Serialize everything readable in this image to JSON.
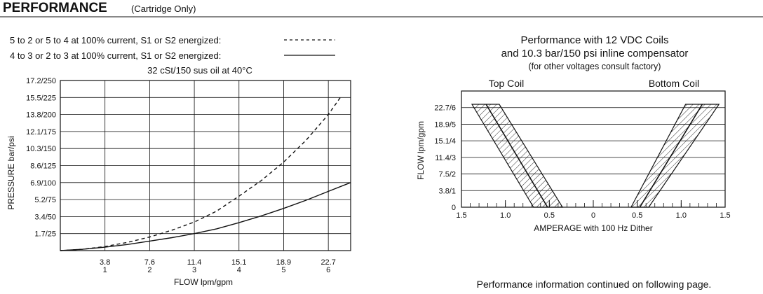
{
  "header": {
    "title": "PERFORMANCE",
    "subtitle": "(Cartridge Only)"
  },
  "footer": {
    "note": "Performance information continued on following page."
  },
  "chart_data": [
    {
      "type": "line",
      "legend": [
        {
          "label": "5 to 2 or 5 to 4 at 100% current, S1 or S2 energized:",
          "style": "dashed"
        },
        {
          "label": "4 to 3 or 2 to 3 at 100% current, S1 or S2 energized:",
          "style": "solid"
        }
      ],
      "title": "32 cSt/150 sus oil at 40°C",
      "xlabel": "FLOW lpm/gpm",
      "ylabel": "PRESSURE bar/psi",
      "x_unit": "gpm",
      "y_unit": "psi",
      "xlim": [
        0,
        6.5
      ],
      "ylim": [
        0,
        250
      ],
      "x_ticks": [
        {
          "value": 1,
          "top": "3.8",
          "bottom": "1"
        },
        {
          "value": 2,
          "top": "7.6",
          "bottom": "2"
        },
        {
          "value": 3,
          "top": "11.4",
          "bottom": "3"
        },
        {
          "value": 4,
          "top": "15.1",
          "bottom": "4"
        },
        {
          "value": 5,
          "top": "18.9",
          "bottom": "5"
        },
        {
          "value": 6,
          "top": "22.7",
          "bottom": "6"
        }
      ],
      "y_ticks": [
        {
          "value": 25,
          "label": "1.7/25"
        },
        {
          "value": 50,
          "label": "3.4/50"
        },
        {
          "value": 75,
          "label": "5.2/75"
        },
        {
          "value": 100,
          "label": "6.9/100"
        },
        {
          "value": 125,
          "label": "8.6/125"
        },
        {
          "value": 150,
          "label": "10.3/150"
        },
        {
          "value": 175,
          "label": "12.1/175"
        },
        {
          "value": 200,
          "label": "13.8/200"
        },
        {
          "value": 225,
          "label": "15.5/225"
        },
        {
          "value": 250,
          "label": "17.2/250"
        }
      ],
      "grid": true,
      "series": [
        {
          "style": "dashed",
          "x": [
            0,
            0.5,
            1,
            1.5,
            2,
            2.5,
            3,
            3.5,
            4,
            4.5,
            5,
            5.5,
            6,
            6.3
          ],
          "y": [
            0,
            2,
            6,
            12,
            20,
            30,
            42,
            58,
            80,
            103,
            130,
            162,
            200,
            228
          ]
        },
        {
          "style": "solid",
          "x": [
            0,
            0.5,
            1,
            1.5,
            2,
            2.5,
            3,
            3.5,
            4,
            4.5,
            5,
            5.5,
            6,
            6.5
          ],
          "y": [
            0,
            2,
            5,
            9,
            14,
            19,
            25,
            32,
            41,
            51,
            62,
            74,
            87,
            100
          ]
        }
      ]
    },
    {
      "type": "area",
      "title_lines": [
        "Performance with 12 VDC Coils",
        "and 10.3 bar/150 psi inline compensator",
        "(for other voltages consult factory)"
      ],
      "xlabel": "AMPERAGE with 100 Hz Dither",
      "ylabel": "FLOW lpm/gpm",
      "xlim": [
        -1.5,
        1.5
      ],
      "ylim": [
        0,
        7
      ],
      "x_ticks": [
        {
          "value": -1.5,
          "label": "1.5"
        },
        {
          "value": -1.0,
          "label": "1.0"
        },
        {
          "value": -0.5,
          "label": "0.5"
        },
        {
          "value": 0,
          "label": "0"
        },
        {
          "value": 0.5,
          "label": "0.5"
        },
        {
          "value": 1.0,
          "label": "1.0"
        },
        {
          "value": 1.5,
          "label": "1.5"
        }
      ],
      "y_ticks": [
        {
          "value": 0,
          "label": "0"
        },
        {
          "value": 1,
          "label": "3.8/1"
        },
        {
          "value": 2,
          "label": "7.5/2"
        },
        {
          "value": 3,
          "label": "11.4/3"
        },
        {
          "value": 4,
          "label": "15.1/4"
        },
        {
          "value": 5,
          "label": "18.9/5"
        },
        {
          "value": 6,
          "label": "22.7/6"
        }
      ],
      "bands": [
        {
          "name": "Top Coil",
          "polygon": [
            [
              -1.38,
              6.2
            ],
            [
              -1.07,
              6.2
            ],
            [
              -0.35,
              0
            ],
            [
              -0.68,
              0
            ]
          ],
          "center": [
            [
              -1.22,
              6.2
            ],
            [
              -0.52,
              0
            ]
          ]
        },
        {
          "name": "Bottom Coil",
          "polygon": [
            [
              1.05,
              6.2
            ],
            [
              1.43,
              6.2
            ],
            [
              0.63,
              0
            ],
            [
              0.43,
              0
            ]
          ],
          "center": [
            [
              1.24,
              6.2
            ],
            [
              0.53,
              0
            ]
          ]
        }
      ]
    }
  ]
}
